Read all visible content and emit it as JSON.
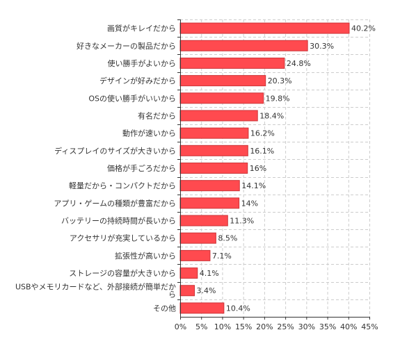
{
  "chart_data": {
    "type": "bar",
    "orientation": "horizontal",
    "categories": [
      "画質がキレイだから",
      "好きなメーカーの製品だから",
      "使い勝手がよいから",
      "デザインが好みだから",
      "OSの使い勝手がいいから",
      "有名だから",
      "動作が速いから",
      "ディスプレイのサイズが大きいから",
      "価格が手ごろだから",
      "軽量だから・コンパクトだから",
      "アプリ・ゲームの種類が豊富だから",
      "バッテリーの持続時間が長いから",
      "アクセサリが充実しているから",
      "拡張性が高いから",
      "ストレージの容量が大きいから",
      [
        "USBやメモリカードなど、外部接続が簡単だか",
        "ら"
      ],
      "その他"
    ],
    "values": [
      40.2,
      30.3,
      24.8,
      20.3,
      19.8,
      18.4,
      16.2,
      16.1,
      16,
      14.1,
      14,
      11.3,
      8.5,
      7.1,
      4.1,
      3.4,
      10.4
    ],
    "value_labels": [
      "40.2%",
      "30.3%",
      "24.8%",
      "20.3%",
      "19.8%",
      "18.4%",
      "16.2%",
      "16.1%",
      "16%",
      "14.1%",
      "14%",
      "11.3%",
      "8.5%",
      "7.1%",
      "4.1%",
      "3.4%",
      "10.4%"
    ],
    "xlim": [
      0,
      45
    ],
    "xticks": [
      0,
      5,
      10,
      15,
      20,
      25,
      30,
      35,
      40,
      45
    ],
    "xtick_labels": [
      "0%",
      "5%",
      "10%",
      "15%",
      "20%",
      "25%",
      "30%",
      "35%",
      "40%",
      "45%"
    ],
    "grid": true,
    "bar_color": "#ff4a4f",
    "bar_edge_color": "#cc3438",
    "title": "",
    "xlabel": "",
    "ylabel": ""
  }
}
